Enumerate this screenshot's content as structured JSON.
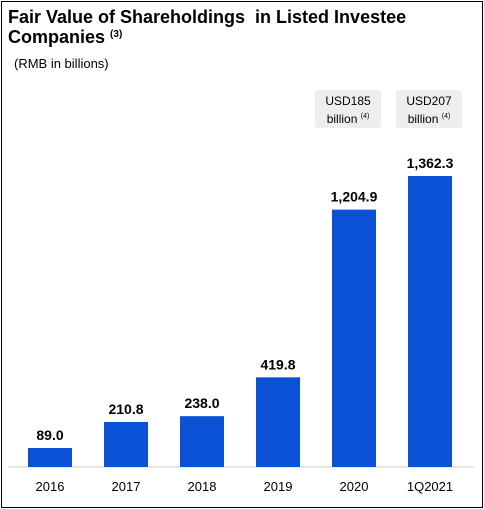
{
  "title_main": "Fair Value of Shareholdings  in Listed Investee Companies",
  "title_footnote": "(3)",
  "unit_label": "(RMB in billions)",
  "notes": [
    {
      "line1": "USD185",
      "line2": "billion",
      "footnote": "(4)"
    },
    {
      "line1": "USD207",
      "line2": "billion",
      "footnote": "(4)"
    }
  ],
  "colors": {
    "bar": "#0a51d6",
    "note_bg": "#eeeeee"
  },
  "chart_data": {
    "type": "bar",
    "categories": [
      "2016",
      "2017",
      "2018",
      "2019",
      "2020",
      "1Q2021"
    ],
    "values": [
      89.0,
      210.8,
      238.0,
      419.8,
      1204.9,
      1362.3
    ],
    "value_labels": [
      "89.0",
      "210.8",
      "238.0",
      "419.8",
      "1,204.9",
      "1,362.3"
    ],
    "ylim": [
      0,
      1362.3
    ],
    "grid": false,
    "title": "Fair Value of Shareholdings  in Listed Investee Companies",
    "ylabel": "(RMB in billions)"
  }
}
